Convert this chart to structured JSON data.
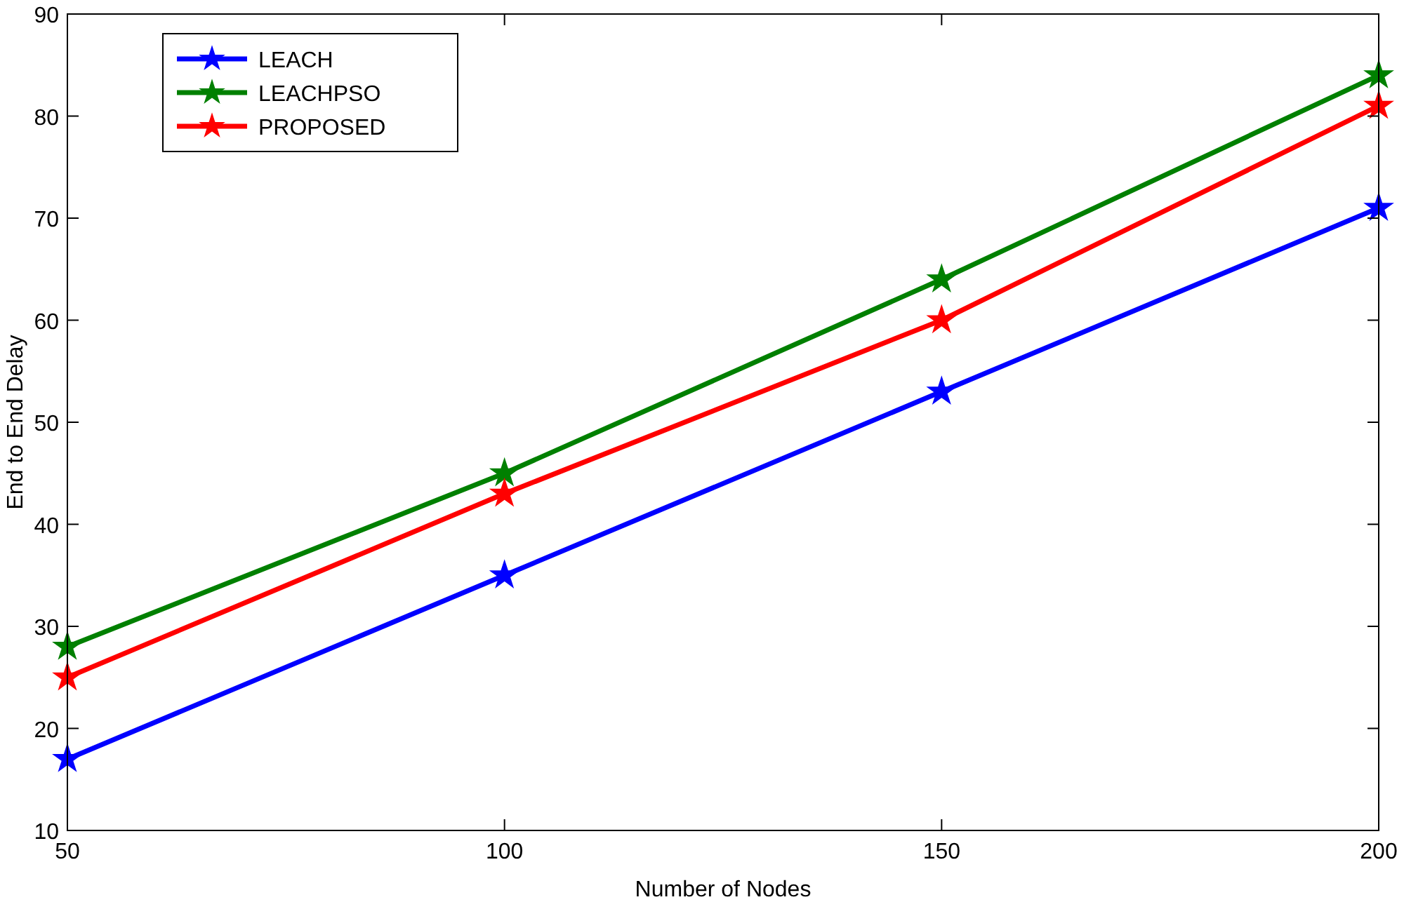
{
  "chart_data": {
    "type": "line",
    "xlabel": "Number of Nodes",
    "ylabel": "End to End Delay",
    "x": [
      50,
      100,
      150,
      200
    ],
    "series": [
      {
        "name": "LEACH",
        "color": "#0000ff",
        "values": [
          17,
          35,
          53,
          71
        ]
      },
      {
        "name": "LEACHPSO",
        "color": "#008000",
        "values": [
          28,
          45,
          64,
          84
        ]
      },
      {
        "name": "PROPOSED",
        "color": "#ff0000",
        "values": [
          25,
          43,
          60,
          81
        ]
      }
    ],
    "xlim": [
      50,
      200
    ],
    "xticks": [
      50,
      100,
      150,
      200
    ],
    "ylim": [
      10,
      90
    ],
    "yticks": [
      10,
      20,
      30,
      40,
      50,
      60,
      70,
      80,
      90
    ],
    "grid": false,
    "legend": "top left",
    "marker": "star",
    "line_style": "solid"
  }
}
